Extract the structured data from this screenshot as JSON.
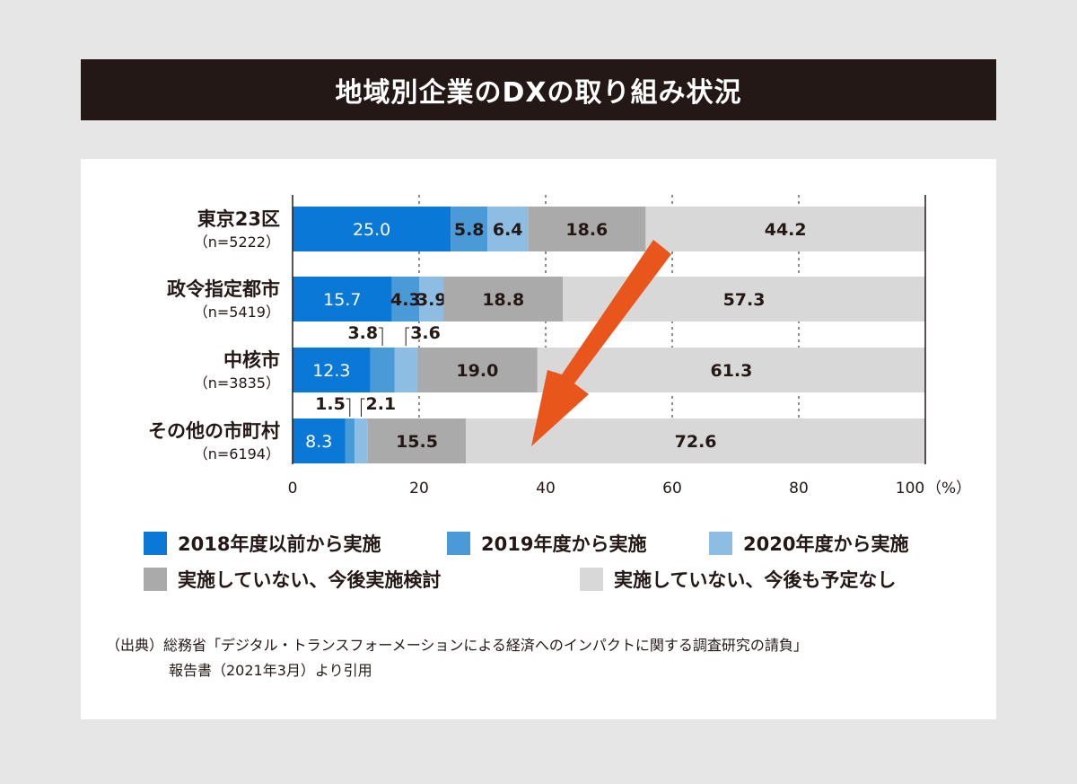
{
  "title": "地域別企業のDXの取り組み状況",
  "chart_data": {
    "type": "bar",
    "orientation": "horizontal",
    "stacked": true,
    "title": "地域別企業のDXの取り組み状況",
    "categories": [
      {
        "name": "東京23区",
        "n": "（n=5222）"
      },
      {
        "name": "政令指定都市",
        "n": "（n=5419）"
      },
      {
        "name": "中核市",
        "n": "（n=3835）"
      },
      {
        "name": "その他の市町村",
        "n": "（n=6194）"
      }
    ],
    "series": [
      {
        "name": "2018年度以前から実施",
        "color": "#0a78d7",
        "values": [
          25.0,
          15.7,
          12.3,
          8.3
        ]
      },
      {
        "name": "2019年度から実施",
        "color": "#4b9ad8",
        "values": [
          5.8,
          4.3,
          3.8,
          1.5
        ]
      },
      {
        "name": "2020年度から実施",
        "color": "#8dbde2",
        "values": [
          6.4,
          3.9,
          3.6,
          2.1
        ]
      },
      {
        "name": "実施していない、今後実施検討",
        "color": "#aaaaaa",
        "values": [
          18.6,
          18.8,
          19.0,
          15.5
        ]
      },
      {
        "name": "実施していない、今後も予定なし",
        "color": "#d8d8d8",
        "values": [
          44.2,
          57.3,
          61.3,
          72.6
        ]
      }
    ],
    "xlim": [
      0,
      100
    ],
    "xticks": [
      0,
      20,
      40,
      60,
      80,
      100
    ],
    "x_unit": "（%）",
    "grid": "vertical dotted",
    "legend_position": "bottom",
    "annotation": "orange arrow pointing down-left"
  },
  "source": {
    "line1": "（出典）総務省「デジタル・トランスフォーメーションによる経済へのインパクトに関する調査研究の請負」",
    "line2": "報告書（2021年3月）より引用"
  }
}
